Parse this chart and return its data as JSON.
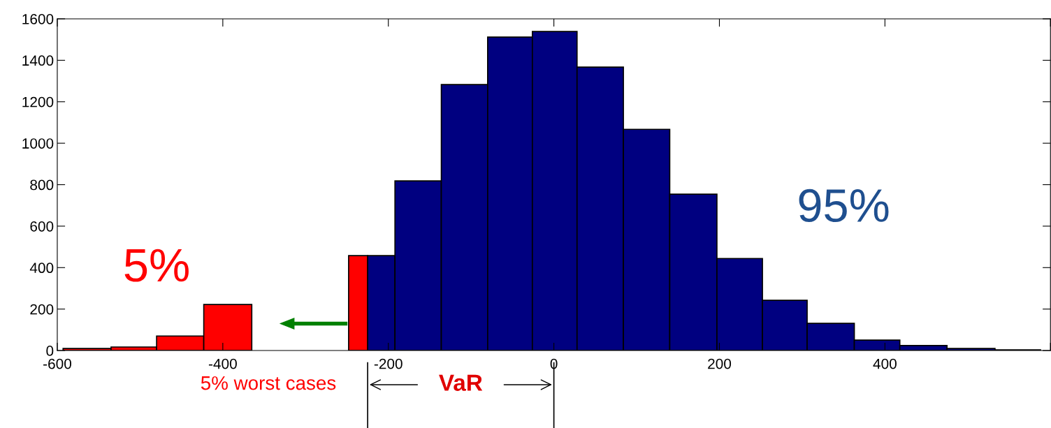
{
  "chart_data": {
    "type": "histogram",
    "bins": [
      -593,
      -535,
      -480,
      -423,
      -365,
      -248,
      -225,
      -192,
      -136,
      -80,
      -26,
      28,
      84,
      140,
      197,
      252,
      306,
      363,
      418,
      475,
      533,
      588
    ],
    "values": [
      10,
      17,
      70,
      222,
      0,
      458,
      458,
      818,
      1283,
      1512,
      1539,
      1367,
      1067,
      754,
      444,
      242,
      131,
      50,
      24,
      10,
      3
    ],
    "colors": [
      "#ff0000",
      "#ff0000",
      "#ff0000",
      "#ff0000",
      "#ff0000",
      "#ff0000",
      "#000080",
      "#000080",
      "#000080",
      "#000080",
      "#000080",
      "#000080",
      "#000080",
      "#000080",
      "#000080",
      "#000080",
      "#000080",
      "#000080",
      "#000080",
      "#000080",
      "#000080"
    ],
    "xlim": [
      -600,
      600
    ],
    "ylim": [
      0,
      1600
    ],
    "xticks": [
      -600,
      -400,
      -200,
      0,
      200,
      400,
      {
        "value": 600,
        "label": null
      }
    ],
    "yticks": [
      0,
      200,
      400,
      600,
      800,
      1000,
      1200,
      1400,
      1600
    ],
    "grid": false,
    "annotations": [
      "5%",
      "95%",
      "5% worst cases",
      "VaR"
    ]
  }
}
